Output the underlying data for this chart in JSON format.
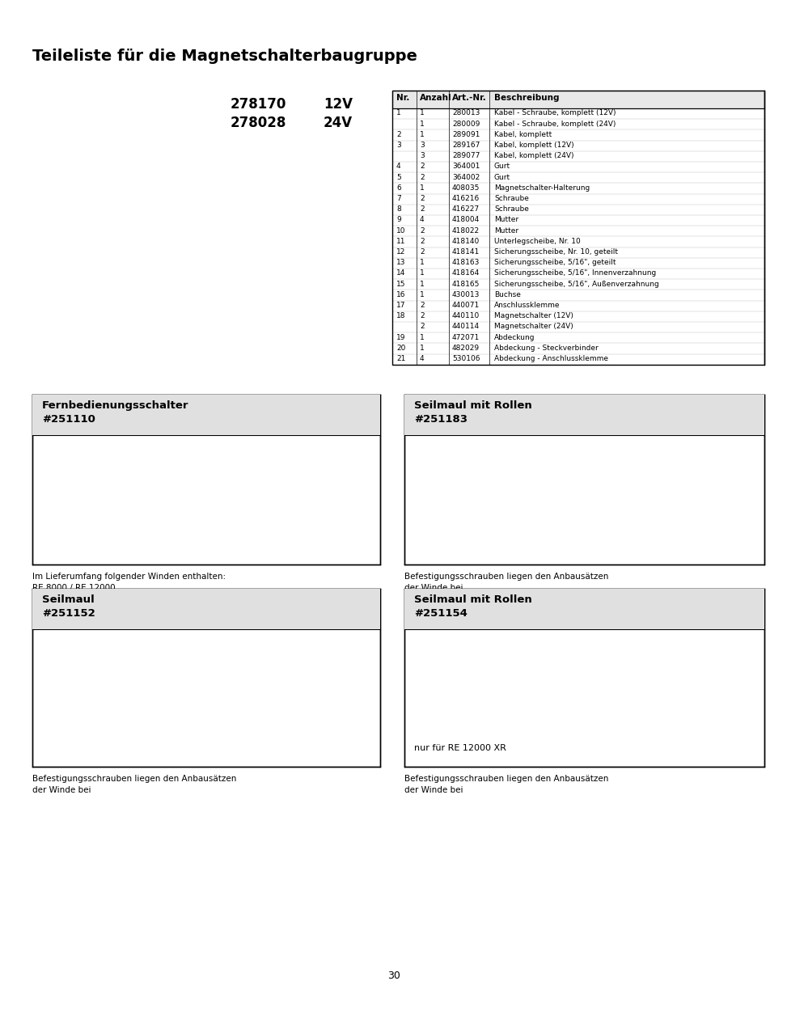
{
  "title": "Teileliste für die Magnetschalterbaugruppe",
  "part_num1": "278170",
  "volt1": "12V",
  "part_num2": "278028",
  "volt2": "24V",
  "table_headers": [
    "Nr.",
    "Anzahl",
    "Art.-Nr.",
    "Beschreibung"
  ],
  "table_rows": [
    [
      "1",
      "1",
      "280013",
      "Kabel - Schraube, komplett (12V)"
    ],
    [
      "",
      "1",
      "280009",
      "Kabel - Schraube, komplett (24V)"
    ],
    [
      "2",
      "1",
      "289091",
      "Kabel, komplett"
    ],
    [
      "3",
      "3",
      "289167",
      "Kabel, komplett (12V)"
    ],
    [
      "",
      "3",
      "289077",
      "Kabel, komplett (24V)"
    ],
    [
      "4",
      "2",
      "364001",
      "Gurt"
    ],
    [
      "5",
      "2",
      "364002",
      "Gurt"
    ],
    [
      "6",
      "1",
      "408035",
      "Magnetschalter-Halterung"
    ],
    [
      "7",
      "2",
      "416216",
      "Schraube"
    ],
    [
      "8",
      "2",
      "416227",
      "Schraube"
    ],
    [
      "9",
      "4",
      "418004",
      "Mutter"
    ],
    [
      "10",
      "2",
      "418022",
      "Mutter"
    ],
    [
      "11",
      "2",
      "418140",
      "Unterlegscheibe, Nr. 10"
    ],
    [
      "12",
      "2",
      "418141",
      "Sicherungsscheibe, Nr. 10, geteilt"
    ],
    [
      "13",
      "1",
      "418163",
      "Sicherungsscheibe, 5/16\", geteilt"
    ],
    [
      "14",
      "1",
      "418164",
      "Sicherungsscheibe, 5/16\", Innenverzahnung"
    ],
    [
      "15",
      "1",
      "418165",
      "Sicherungsscheibe, 5/16\", Außenverzahnung"
    ],
    [
      "16",
      "1",
      "430013",
      "Buchse"
    ],
    [
      "17",
      "2",
      "440071",
      "Anschlussklemme"
    ],
    [
      "18",
      "2",
      "440110",
      "Magnetschalter (12V)"
    ],
    [
      "",
      "2",
      "440114",
      "Magnetschalter (24V)"
    ],
    [
      "19",
      "1",
      "472071",
      "Abdeckung"
    ],
    [
      "20",
      "1",
      "482029",
      "Abdeckung - Steckverbinder"
    ],
    [
      "21",
      "4",
      "530106",
      "Abdeckung - Anschlussklemme"
    ]
  ],
  "boxes": [
    {
      "title_line1": "Fernbedienungsschalter",
      "title_line2": "#251110",
      "inside_note": "",
      "caption_line1": "Im Lieferumfang folgender Winden enthalten:",
      "caption_line2": "RE 8000 / RE 12000"
    },
    {
      "title_line1": "Seilmaul mit Rollen",
      "title_line2": "#251183",
      "inside_note": "",
      "caption_line1": "Befestigungsschrauben liegen den Anbausätzen",
      "caption_line2": "der Winde bei"
    },
    {
      "title_line1": "Seilmaul",
      "title_line2": "#251152",
      "inside_note": "",
      "caption_line1": "Befestigungsschrauben liegen den Anbausätzen",
      "caption_line2": "der Winde bei"
    },
    {
      "title_line1": "Seilmaul mit Rollen",
      "title_line2": "#251154",
      "inside_note": "nur für RE 12000 XR",
      "caption_line1": "Befestigungsschrauben liegen den Anbausätzen",
      "caption_line2": "der Winde bei"
    }
  ],
  "page_number": "30",
  "bg_color": "#ffffff",
  "text_color": "#000000"
}
